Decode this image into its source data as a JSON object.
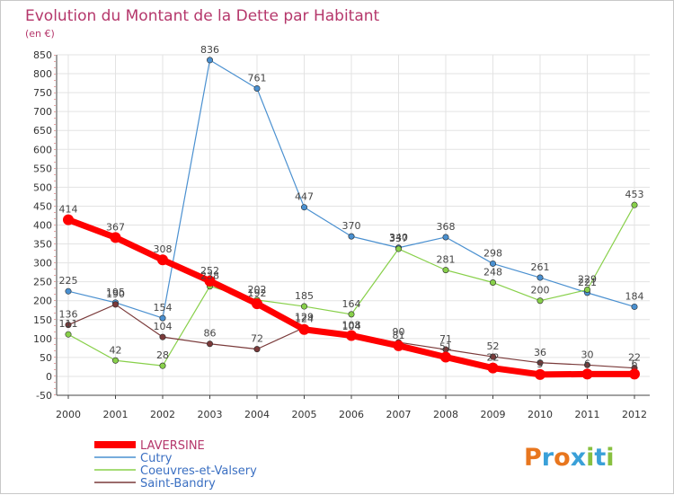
{
  "colors": {
    "title": "#b5376b",
    "grid": "#e3e3e3",
    "axis": "#444444",
    "laversine": "#ff0000",
    "cutry": "#4a90d0",
    "coeuvres": "#88d04a",
    "saintbandry": "#7a3a3a"
  },
  "chart_data": {
    "type": "line",
    "title": "Evolution du Montant de la Dette par Habitant",
    "unit": "(en €)",
    "x": [
      "2000",
      "2001",
      "2002",
      "2003",
      "2004",
      "2005",
      "2006",
      "2007",
      "2008",
      "2009",
      "2010",
      "2011",
      "2012"
    ],
    "ylim": [
      -50,
      850
    ],
    "yticks": [
      -50,
      0,
      50,
      100,
      150,
      200,
      250,
      300,
      350,
      400,
      450,
      500,
      550,
      600,
      650,
      700,
      750,
      800,
      850
    ],
    "grid": true,
    "legend_position": "bottom-left",
    "series": [
      {
        "name": "LAVERSINE",
        "values": [
          414,
          367,
          308,
          252,
          192,
          124,
          108,
          81,
          51,
          22,
          5,
          6,
          6
        ],
        "color": "#ff0000",
        "width": 7,
        "label_color": "#b5376b"
      },
      {
        "name": "Cutry",
        "values": [
          225,
          195,
          154,
          836,
          761,
          447,
          370,
          340,
          368,
          298,
          261,
          221,
          184
        ],
        "color": "#4a90d0",
        "width": 1.2,
        "label_color": "#3a6fc2"
      },
      {
        "name": "Coeuvres-et-Valsery",
        "values": [
          111,
          42,
          28,
          238,
          202,
          185,
          164,
          337,
          281,
          248,
          200,
          229,
          453
        ],
        "color": "#88d04a",
        "width": 1.2,
        "label_color": "#3a6fc2"
      },
      {
        "name": "Saint-Bandry",
        "values": [
          136,
          190,
          104,
          86,
          72,
          129,
          104,
          90,
          71,
          52,
          36,
          30,
          22
        ],
        "color": "#7a3a3a",
        "width": 1.2,
        "label_color": "#3a6fc2"
      }
    ]
  },
  "branding": {
    "logo_text": "Proxiti",
    "letters": [
      "P",
      "r",
      "o",
      "x",
      "i",
      "t",
      "i"
    ],
    "letter_colors": [
      "#e8761e",
      "#3aa0d8",
      "#e8761e",
      "#3aa0d8",
      "#88c040",
      "#3aa0d8",
      "#88c040"
    ]
  }
}
